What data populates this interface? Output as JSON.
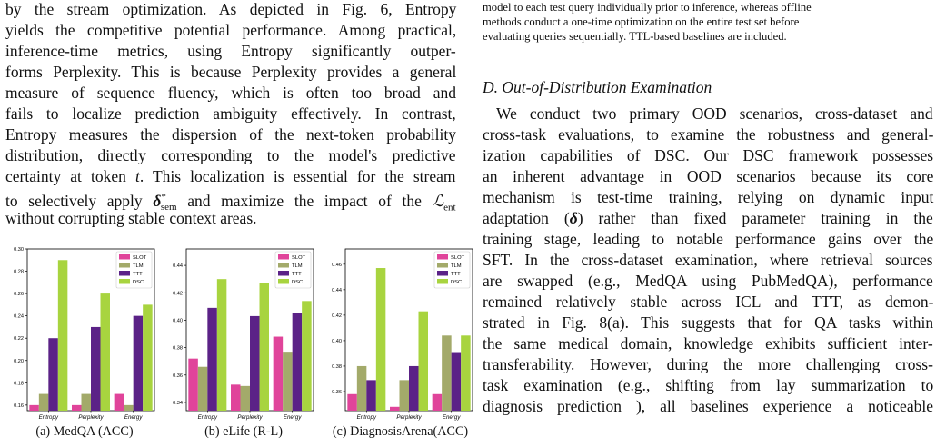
{
  "left_text": [
    "by the stream optimization. As depicted in Fig. 6, Entropy",
    "yields the competitive potential performance. Among practical,",
    "inference-time metrics, using Entropy significantly outper-",
    "forms Perplexity. This is because Perplexity provides a general",
    "measure of sequence fluency, which is often too broad and",
    "fails to localize prediction ambiguity effectively. In contrast,",
    "Entropy measures the dispersion of the next-token probability",
    "distribution, directly corresponding to the model's predictive",
    "certainty at token t. This localization is essential for the stream",
    "to selectively apply δ*sem and maximize the impact of the ℒent",
    "without corrupting stable context areas."
  ],
  "right_caption_lines": [
    "model to each test query individually prior to inference, whereas offline",
    "methods conduct a one-time optimization on the entire test set before",
    "evaluating queries sequentially. TTL-based baselines are included."
  ],
  "section_heading": "D.  Out-of-Distribution Examination",
  "right_text": [
    "We conduct two primary OOD scenarios, cross-dataset and",
    "cross-task evaluations, to examine the robustness and general-",
    "ization capabilities of DSC. Our DSC framework possesses",
    "an inherent advantage in OOD scenarios because its core",
    "mechanism is test-time training, relying on dynamic input",
    "adaptation (δ) rather than fixed parameter training in the",
    "training stage, leading to notable performance gains over the",
    "SFT. In the cross-dataset examination, where retrieval sources",
    "are swapped (e.g., MedQA using PubMedQA), performance",
    "remained relatively stable across ICL and TTT, as demon-",
    "strated in Fig. 8(a). This suggests that for QA tasks within",
    "the same medical domain, knowledge exhibits sufficient inter-",
    "transferability. However, during the more challenging cross-",
    "task examination (e.g., shifting from lay summarization to",
    "diagnosis prediction ), all baselines experience a noticeable"
  ],
  "chart_data": [
    {
      "type": "bar",
      "title": "",
      "caption": "(a) MedQA (ACC)",
      "categories": [
        "Entropy",
        "Perplexity",
        "Energy"
      ],
      "ylim": [
        0.155,
        0.3
      ],
      "yticks": [
        "0.16",
        "0.18",
        "0.20",
        "0.22",
        "0.24",
        "0.26",
        "0.28",
        "0.30"
      ],
      "series": [
        {
          "name": "SLOT",
          "color": "#e0449a",
          "values": [
            0.16,
            0.16,
            0.17
          ]
        },
        {
          "name": "TLM",
          "color": "#a3aa6a",
          "values": [
            0.17,
            0.17,
            0.16
          ]
        },
        {
          "name": "TTT",
          "color": "#5b2287",
          "values": [
            0.22,
            0.23,
            0.24
          ]
        },
        {
          "name": "DSC",
          "color": "#a8d43f",
          "values": [
            0.29,
            0.26,
            0.25
          ]
        }
      ],
      "legend": "top-right"
    },
    {
      "type": "bar",
      "title": "",
      "caption": "(b) eLife (R-L)",
      "categories": [
        "Entropy",
        "Perplexity",
        "Energy"
      ],
      "ylim": [
        0.334,
        0.452
      ],
      "yticks": [
        "0.34",
        "0.36",
        "0.38",
        "0.40",
        "0.42",
        "0.44"
      ],
      "series": [
        {
          "name": "SLOT",
          "color": "#e0449a",
          "values": [
            0.372,
            0.353,
            0.388
          ]
        },
        {
          "name": "TLM",
          "color": "#a3aa6a",
          "values": [
            0.366,
            0.352,
            0.377
          ]
        },
        {
          "name": "TTT",
          "color": "#5b2287",
          "values": [
            0.409,
            0.403,
            0.405
          ]
        },
        {
          "name": "DSC",
          "color": "#a8d43f",
          "values": [
            0.43,
            0.427,
            0.414
          ]
        }
      ],
      "legend": "top-right"
    },
    {
      "type": "bar",
      "title": "",
      "caption": "(c) DiagnosisArena(ACC)",
      "categories": [
        "Entropy",
        "Perplexity",
        "Energy"
      ],
      "ylim": [
        0.345,
        0.472
      ],
      "yticks": [
        "0.36",
        "0.38",
        "0.40",
        "0.42",
        "0.44",
        "0.46"
      ],
      "series": [
        {
          "name": "SLOT",
          "color": "#e0449a",
          "values": [
            0.358,
            0.348,
            0.358
          ]
        },
        {
          "name": "TLM",
          "color": "#a3aa6a",
          "values": [
            0.38,
            0.369,
            0.404
          ]
        },
        {
          "name": "TTT",
          "color": "#5b2287",
          "values": [
            0.369,
            0.38,
            0.391
          ]
        },
        {
          "name": "DSC",
          "color": "#a8d43f",
          "values": [
            0.457,
            0.423,
            0.404
          ]
        }
      ],
      "legend": "top-right"
    }
  ]
}
